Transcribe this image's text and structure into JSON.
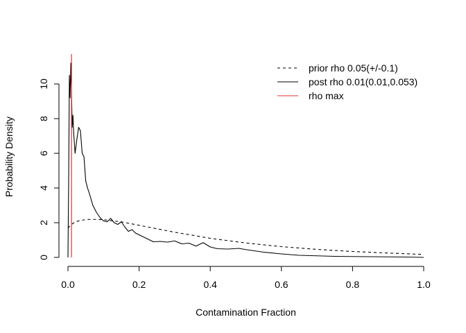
{
  "chart_data": {
    "type": "line",
    "title": "",
    "xlabel": "Contamination Fraction",
    "ylabel": "Probability Density",
    "xlim": [
      0,
      1
    ],
    "ylim": [
      0,
      11.6
    ],
    "xticks": [
      "0.0",
      "0.2",
      "0.4",
      "0.6",
      "0.8",
      "1.0"
    ],
    "yticks": [
      "0",
      "2",
      "4",
      "6",
      "8",
      "10"
    ],
    "grid": false,
    "legend": {
      "position": "top-right",
      "entries": [
        {
          "label": "prior rho 0.05(+/-0.1)",
          "style": "dashed",
          "color": "#000000"
        },
        {
          "label": "post rho 0.01(0.01,0.053)",
          "style": "solid",
          "color": "#000000"
        },
        {
          "label": "rho max",
          "style": "solid",
          "color": "#e03131"
        }
      ]
    },
    "series": [
      {
        "name": "prior rho 0.05(+/-0.1)",
        "style": "dashed",
        "color": "#000000",
        "x": [
          0.0,
          0.01,
          0.02,
          0.04,
          0.06,
          0.08,
          0.1,
          0.15,
          0.2,
          0.3,
          0.4,
          0.5,
          0.6,
          0.7,
          0.8,
          0.9,
          1.0
        ],
        "y": [
          1.7,
          1.9,
          2.05,
          2.15,
          2.19,
          2.19,
          2.17,
          2.05,
          1.85,
          1.45,
          1.1,
          0.83,
          0.62,
          0.46,
          0.34,
          0.25,
          0.17
        ]
      },
      {
        "name": "post rho 0.01(0.01,0.053)",
        "style": "solid",
        "color": "#000000",
        "x": [
          0.0,
          0.002,
          0.004,
          0.006,
          0.008,
          0.01,
          0.012,
          0.014,
          0.016,
          0.02,
          0.025,
          0.03,
          0.035,
          0.04,
          0.045,
          0.05,
          0.055,
          0.06,
          0.07,
          0.08,
          0.09,
          0.1,
          0.11,
          0.12,
          0.13,
          0.14,
          0.15,
          0.16,
          0.17,
          0.18,
          0.19,
          0.2,
          0.22,
          0.24,
          0.26,
          0.28,
          0.3,
          0.32,
          0.34,
          0.36,
          0.38,
          0.4,
          0.42,
          0.45,
          0.48,
          0.5,
          0.55,
          0.6,
          0.65,
          0.7,
          0.75,
          0.8,
          0.85,
          0.9,
          0.95,
          1.0
        ],
        "y": [
          0.0,
          4.5,
          10.5,
          9.2,
          11.2,
          9.5,
          7.5,
          8.2,
          7.2,
          6.0,
          6.8,
          7.5,
          7.3,
          6.0,
          5.8,
          4.4,
          4.0,
          3.7,
          3.0,
          2.6,
          2.3,
          2.1,
          2.05,
          2.25,
          2.0,
          1.9,
          2.05,
          1.75,
          1.5,
          1.6,
          1.4,
          1.3,
          1.1,
          0.9,
          0.92,
          0.88,
          0.95,
          0.78,
          0.82,
          0.65,
          0.85,
          0.6,
          0.5,
          0.48,
          0.52,
          0.45,
          0.3,
          0.2,
          0.12,
          0.09,
          0.06,
          0.05,
          0.04,
          0.03,
          0.02,
          0.0
        ]
      }
    ],
    "rho_max": 0.01
  }
}
